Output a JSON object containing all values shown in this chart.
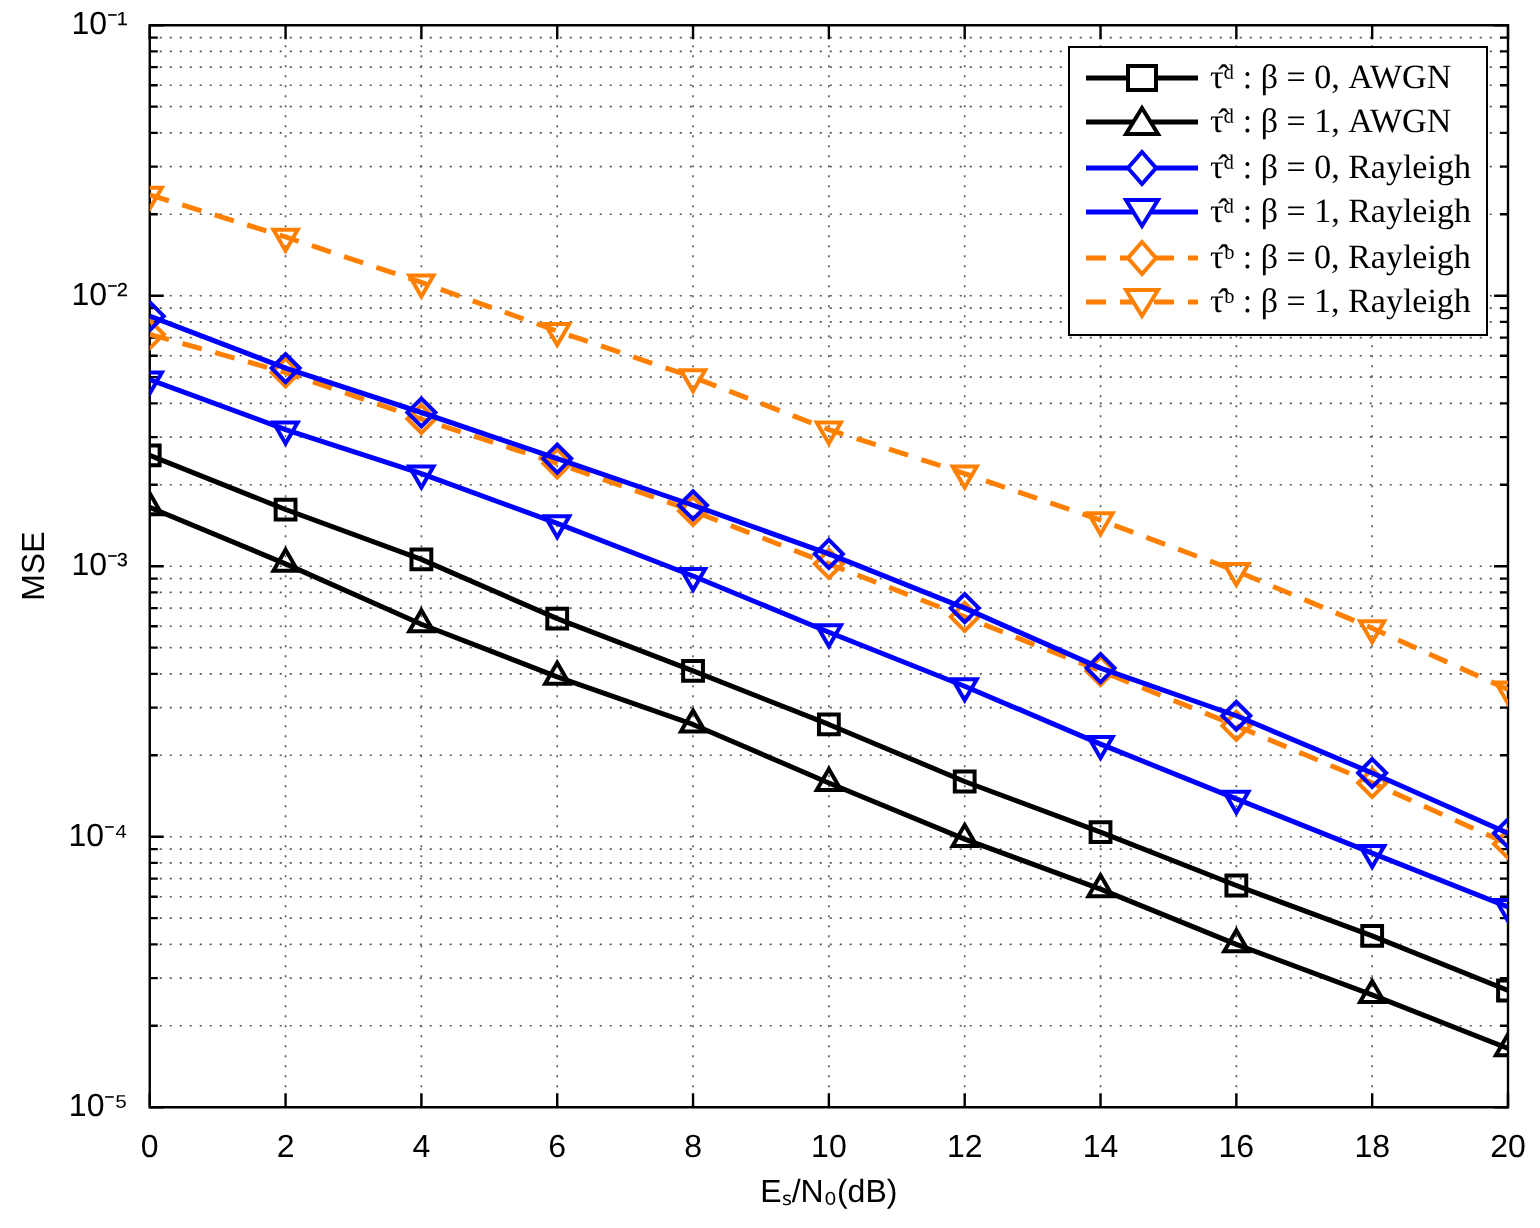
{
  "chart_data": {
    "type": "line",
    "xlabel": "Eₛ/N₀(dB)",
    "ylabel": "MSE",
    "log": "y",
    "grid": true,
    "legend": "top right",
    "x": [
      0,
      2,
      4,
      6,
      8,
      10,
      12,
      14,
      16,
      18,
      20
    ],
    "xlim": [
      0,
      20
    ],
    "xticks": [
      0,
      2,
      4,
      6,
      8,
      10,
      12,
      14,
      16,
      18,
      20
    ],
    "ylim": [
      1e-05,
      0.1
    ],
    "yticks": [
      {
        "value": 1e-05,
        "label": "10⁻⁵"
      },
      {
        "value": 0.0001,
        "label": "10⁻⁴"
      },
      {
        "value": 0.001,
        "label": "10⁻³"
      },
      {
        "value": 0.01,
        "label": "10⁻²"
      },
      {
        "value": 0.1,
        "label": "10⁻¹"
      }
    ],
    "series": [
      {
        "name": "τ̂ᵈ : β = 0, AWGN",
        "color": "#000000",
        "marker": "square",
        "line_style": "solid",
        "values": [
          0.00257,
          0.00162,
          0.00106,
          0.00064,
          0.00041,
          0.00026,
          0.00016,
          0.000104,
          6.6e-05,
          4.3e-05,
          2.7e-05
        ]
      },
      {
        "name": "τ̂ᵈ : β = 1, AWGN",
        "color": "#000000",
        "marker": "triangle",
        "line_style": "solid",
        "values": [
          0.00165,
          0.00102,
          0.00061,
          0.00039,
          0.00026,
          0.000158,
          9.8e-05,
          6.4e-05,
          4e-05,
          2.6e-05,
          1.65e-05
        ]
      },
      {
        "name": "τ̂ᵈ : β = 0, Rayleigh",
        "color": "#0000ff",
        "marker": "diamond",
        "line_style": "solid",
        "values": [
          0.0084,
          0.0054,
          0.0037,
          0.0025,
          0.00168,
          0.00111,
          0.0007,
          0.00042,
          0.00028,
          0.000172,
          0.000103
        ]
      },
      {
        "name": "τ̂ᵈ : β = 1, Rayleigh",
        "color": "#0000ff",
        "marker": "triangle-down",
        "line_style": "solid",
        "values": [
          0.0049,
          0.0032,
          0.0022,
          0.00144,
          0.00092,
          0.00057,
          0.00036,
          0.00022,
          0.000138,
          8.7e-05,
          5.5e-05
        ]
      },
      {
        "name": "τ̂ᵇ : β = 0, Rayleigh",
        "color": "#ff8000",
        "marker": "diamond",
        "line_style": "dashed",
        "values": [
          0.0072,
          0.0052,
          0.0035,
          0.0024,
          0.0016,
          0.00102,
          0.00065,
          0.00041,
          0.000257,
          0.000158,
          9.4e-05
        ]
      },
      {
        "name": "τ̂ᵇ : β = 1, Rayleigh",
        "color": "#ff8000",
        "marker": "triangle-down",
        "line_style": "dashed",
        "values": [
          0.0236,
          0.0165,
          0.0112,
          0.0074,
          0.005,
          0.0032,
          0.0022,
          0.00148,
          0.00096,
          0.00059,
          0.00035
        ]
      }
    ]
  }
}
